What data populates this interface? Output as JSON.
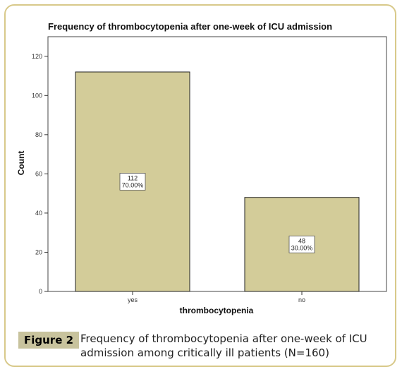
{
  "chart_data": {
    "type": "bar",
    "title": "Frequency of thrombocytopenia after one-week of ICU admission",
    "xlabel": "thrombocytopenia",
    "ylabel": "Count",
    "categories": [
      "yes",
      "no"
    ],
    "values": [
      112,
      48
    ],
    "bar_labels": [
      {
        "count": "112",
        "percent": "70.00%"
      },
      {
        "count": "48",
        "percent": "30.00%"
      }
    ],
    "ylim": [
      0,
      130
    ],
    "yticks": [
      0,
      20,
      40,
      60,
      80,
      100,
      120
    ],
    "ytick_labels": [
      "0",
      "20",
      "40",
      "60",
      "80",
      "100",
      "120"
    ],
    "grid": false,
    "bar_color": "#d3cc99"
  },
  "caption": {
    "figure_label": "Figure 2",
    "line1": "Frequency of thrombocytopenia after one-week of ICU",
    "line2": "admission among critically ill patients (N=160)"
  }
}
